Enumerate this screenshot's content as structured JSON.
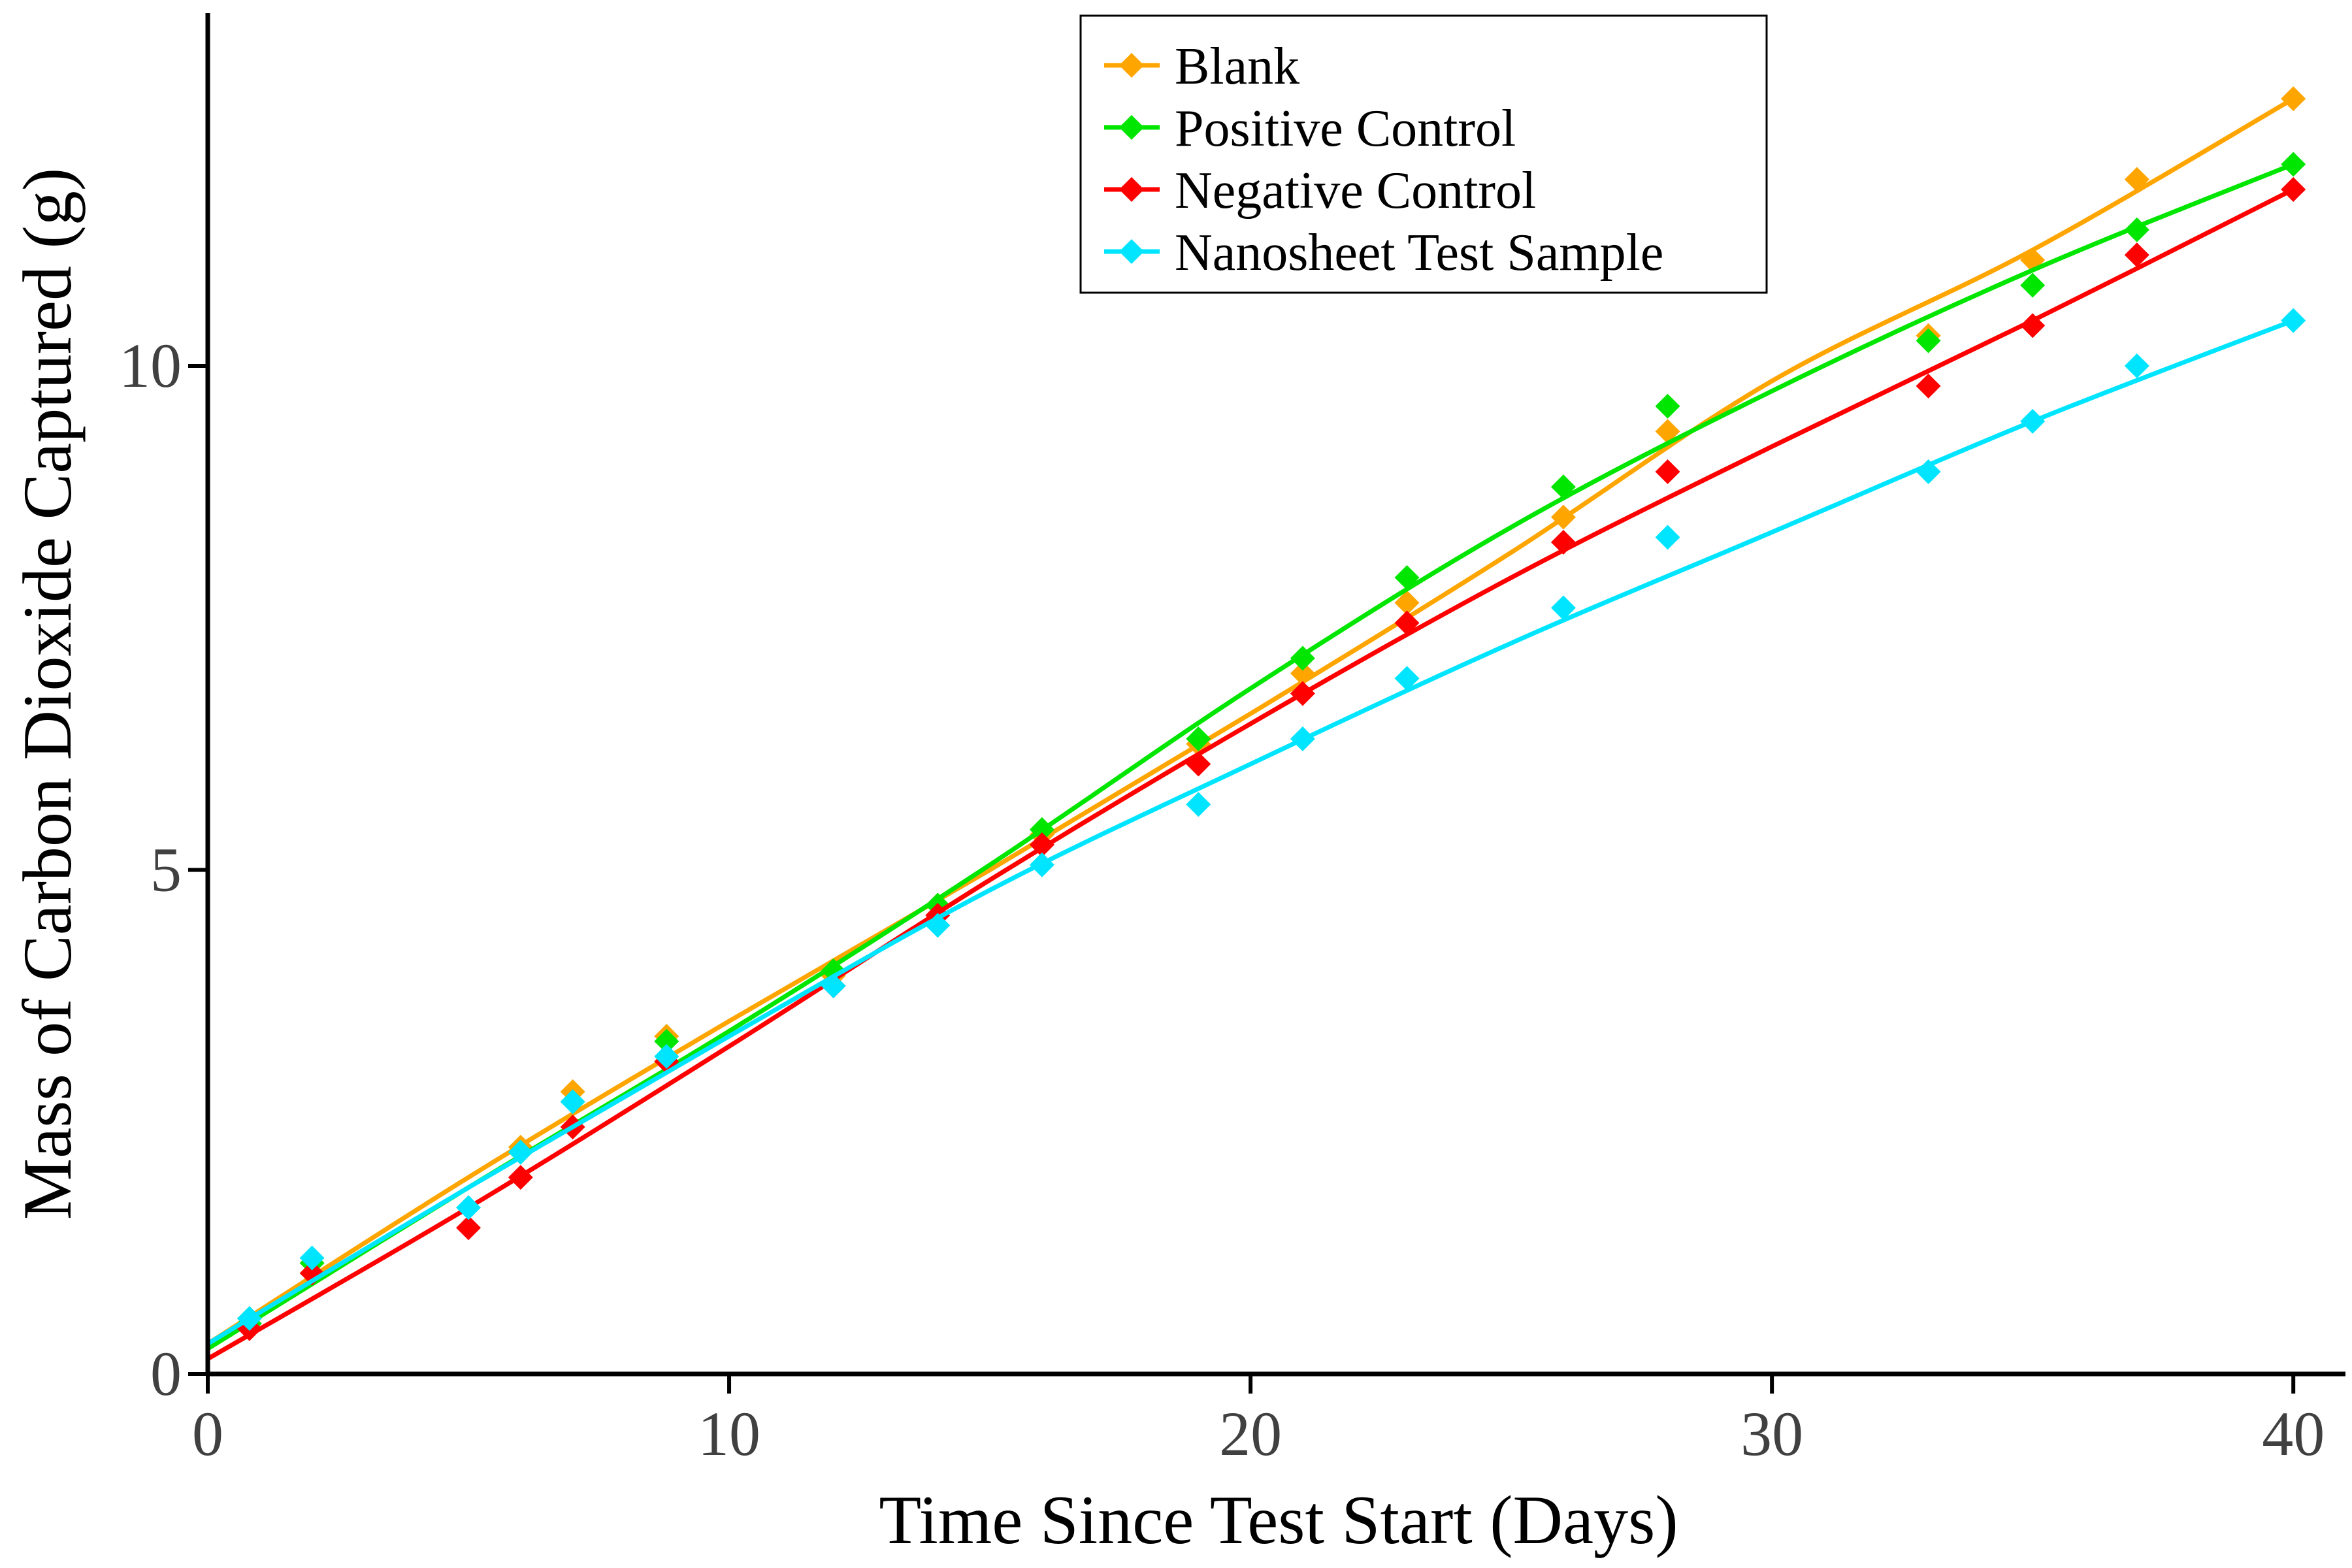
{
  "chart_data": {
    "type": "scatter",
    "title": "",
    "xlabel": "Time Since Test Start (Days)",
    "ylabel": "Mass of Carbon Dioxide Captured (g)",
    "xlim": [
      0,
      41
    ],
    "ylim": [
      0,
      13.5
    ],
    "xticks": [
      "0",
      "10",
      "20",
      "30",
      "40"
    ],
    "yticks": [
      "0",
      "5",
      "10"
    ],
    "xtick_values": [
      0,
      10,
      20,
      30,
      40
    ],
    "ytick_values": [
      0,
      5,
      10
    ],
    "grid": false,
    "legend_position": "top-center",
    "marker": "diamond",
    "series": [
      {
        "name": "Blank",
        "color": "#FFA500",
        "points": [
          [
            0.8,
            0.55
          ],
          [
            2,
            1.1
          ],
          [
            6,
            2.25
          ],
          [
            7,
            2.8
          ],
          [
            8.8,
            3.35
          ],
          [
            12,
            3.95
          ],
          [
            14,
            4.65
          ],
          [
            16,
            5.35
          ],
          [
            19,
            6.25
          ],
          [
            21,
            6.95
          ],
          [
            23,
            7.65
          ],
          [
            26,
            8.5
          ],
          [
            28,
            9.35
          ],
          [
            33,
            10.3
          ],
          [
            35,
            11.05
          ],
          [
            37,
            11.85
          ],
          [
            40,
            12.65
          ]
        ],
        "fit": [
          [
            0,
            0.3
          ],
          [
            5,
            1.95
          ],
          [
            10,
            3.5
          ],
          [
            15,
            5.0
          ],
          [
            20,
            6.55
          ],
          [
            25,
            8.15
          ],
          [
            30,
            9.85
          ],
          [
            35,
            11.15
          ],
          [
            40,
            12.65
          ]
        ]
      },
      {
        "name": "Positive Control",
        "color": "#00E600",
        "points": [
          [
            0.8,
            0.5
          ],
          [
            2,
            1.1
          ],
          [
            6,
            2.2
          ],
          [
            7,
            2.7
          ],
          [
            8.8,
            3.3
          ],
          [
            12,
            4.0
          ],
          [
            14,
            4.65
          ],
          [
            16,
            5.4
          ],
          [
            19,
            6.3
          ],
          [
            21,
            7.1
          ],
          [
            23,
            7.9
          ],
          [
            26,
            8.8
          ],
          [
            28,
            9.6
          ],
          [
            33,
            10.25
          ],
          [
            35,
            10.8
          ],
          [
            37,
            11.35
          ],
          [
            40,
            12.0
          ]
        ],
        "fit": [
          [
            0,
            0.25
          ],
          [
            5,
            1.85
          ],
          [
            10,
            3.4
          ],
          [
            15,
            5.05
          ],
          [
            20,
            6.8
          ],
          [
            25,
            8.4
          ],
          [
            30,
            9.75
          ],
          [
            35,
            10.95
          ],
          [
            40,
            12.0
          ]
        ]
      },
      {
        "name": "Negative Control",
        "color": "#FF0000",
        "points": [
          [
            0.8,
            0.45
          ],
          [
            2,
            1.0
          ],
          [
            5,
            1.45
          ],
          [
            6,
            1.95
          ],
          [
            7,
            2.45
          ],
          [
            8.8,
            3.1
          ],
          [
            12,
            3.85
          ],
          [
            14,
            4.55
          ],
          [
            16,
            5.25
          ],
          [
            19,
            6.05
          ],
          [
            21,
            6.75
          ],
          [
            23,
            7.45
          ],
          [
            26,
            8.25
          ],
          [
            28,
            8.95
          ],
          [
            33,
            9.8
          ],
          [
            35,
            10.4
          ],
          [
            37,
            11.1
          ],
          [
            40,
            11.75
          ]
        ],
        "fit": [
          [
            0,
            0.15
          ],
          [
            5,
            1.65
          ],
          [
            10,
            3.25
          ],
          [
            15,
            4.9
          ],
          [
            20,
            6.45
          ],
          [
            25,
            7.9
          ],
          [
            30,
            9.2
          ],
          [
            35,
            10.45
          ],
          [
            40,
            11.75
          ]
        ]
      },
      {
        "name": "Nanosheet Test Sample",
        "color": "#00E5FF",
        "points": [
          [
            0.8,
            0.55
          ],
          [
            2,
            1.15
          ],
          [
            5,
            1.65
          ],
          [
            6,
            2.2
          ],
          [
            7,
            2.7
          ],
          [
            8.8,
            3.15
          ],
          [
            12,
            3.85
          ],
          [
            14,
            4.45
          ],
          [
            16,
            5.05
          ],
          [
            19,
            5.65
          ],
          [
            21,
            6.3
          ],
          [
            23,
            6.9
          ],
          [
            26,
            7.6
          ],
          [
            28,
            8.3
          ],
          [
            33,
            8.95
          ],
          [
            35,
            9.45
          ],
          [
            37,
            10.0
          ],
          [
            40,
            10.45
          ]
        ],
        "fit": [
          [
            0,
            0.3
          ],
          [
            5,
            1.85
          ],
          [
            10,
            3.35
          ],
          [
            15,
            4.8
          ],
          [
            20,
            6.05
          ],
          [
            25,
            7.25
          ],
          [
            30,
            8.35
          ],
          [
            35,
            9.45
          ],
          [
            40,
            10.45
          ]
        ]
      }
    ]
  }
}
